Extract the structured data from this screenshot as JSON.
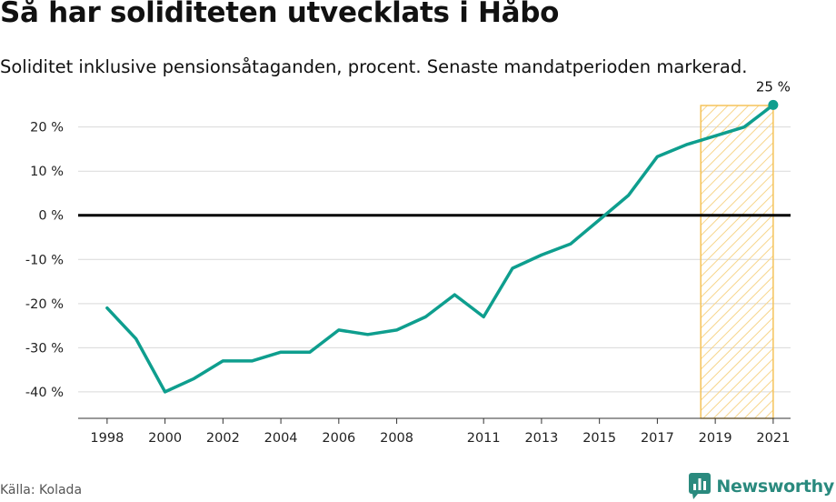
{
  "title": "Så har soliditeten utvecklats i Håbo",
  "subtitle": "Soliditet inklusive pensionsåtaganden, procent. Senaste mandatperioden markerad.",
  "source": "Källa: Kolada",
  "brand": "Newsworthy",
  "colors": {
    "line": "#0e9e8e",
    "zero_line": "#000000",
    "grid": "#d9d9d9",
    "highlight_stroke": "#f5c35a",
    "highlight_hatch": "#f7d58b",
    "brand": "#2a8a7e"
  },
  "chart_data": {
    "type": "line",
    "title": "Så har soliditeten utvecklats i Håbo",
    "xlabel": "",
    "ylabel": "",
    "x": [
      1998,
      1999,
      2000,
      2001,
      2002,
      2003,
      2004,
      2005,
      2006,
      2007,
      2008,
      2009,
      2010,
      2011,
      2012,
      2013,
      2014,
      2015,
      2016,
      2017,
      2018,
      2019,
      2020,
      2021
    ],
    "series": [
      {
        "values": [
          -21,
          -28,
          -40,
          -37,
          -33,
          -33,
          -31,
          -31,
          -26,
          -27,
          -26,
          -23,
          -18,
          -23,
          -12,
          -9,
          -6.5,
          -1,
          4.5,
          13.3,
          16,
          18,
          20,
          25
        ]
      }
    ],
    "x_ticks": [
      1998,
      2000,
      2002,
      2004,
      2006,
      2008,
      2011,
      2013,
      2015,
      2017,
      2019,
      2021
    ],
    "x_tick_labels": [
      "1998",
      "2000",
      "2002",
      "2004",
      "2006",
      "2008",
      "2011",
      "2013",
      "2015",
      "2017",
      "2019",
      "2021"
    ],
    "y_ticks": [
      -40,
      -30,
      -20,
      -10,
      0,
      10,
      20
    ],
    "y_tick_labels": [
      "-40 %",
      "-30 %",
      "-20 %",
      "-10 %",
      "0 %",
      "10 %",
      "20 %"
    ],
    "xlim": [
      1997,
      2021.6
    ],
    "ylim": [
      -46,
      29
    ],
    "highlight_range": [
      2018.5,
      2021
    ],
    "annotation": {
      "label": "25 %",
      "x": 2021,
      "y": 25
    },
    "grid": true
  }
}
